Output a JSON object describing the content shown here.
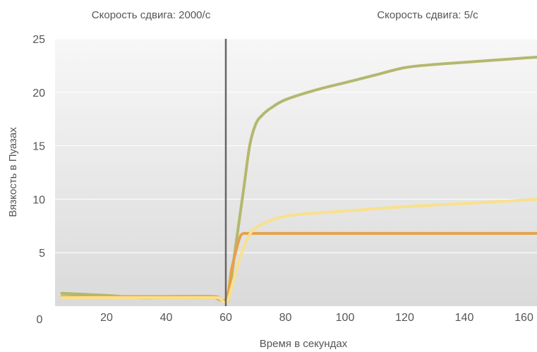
{
  "chart_data": {
    "type": "line",
    "title": "",
    "xlabel": "Время в секундах",
    "ylabel": "Вязкость в Пуазах",
    "xlim": [
      0,
      165
    ],
    "ylim": [
      0,
      25
    ],
    "x_ticks": [
      20,
      40,
      60,
      80,
      100,
      120,
      140,
      160
    ],
    "y_ticks": [
      5,
      10,
      15,
      20,
      25
    ],
    "origin_label": "0",
    "grid": true,
    "legend": "none",
    "annotations": [
      {
        "text": "Скорость сдвига: 2000/с",
        "region": "left"
      },
      {
        "text": "Скорость сдвига: 5/с",
        "region": "right"
      }
    ],
    "divider_x": 60,
    "colors": {
      "plot_bg_top": "#f7f7f7",
      "plot_bg_bottom": "#dadada",
      "divider": "#666666"
    },
    "series": [
      {
        "color": "#b3b86e",
        "x": [
          5,
          20,
          30,
          40,
          50,
          56,
          58,
          60,
          61,
          63,
          66,
          68,
          70,
          72,
          75,
          80,
          90,
          100,
          110,
          120,
          130,
          140,
          150,
          160,
          165
        ],
        "y": [
          1.2,
          1.0,
          0.8,
          0.8,
          0.8,
          0.8,
          0.6,
          0.5,
          0.9,
          5.0,
          11.0,
          15.0,
          17.0,
          17.8,
          18.5,
          19.3,
          20.2,
          20.9,
          21.6,
          22.3,
          22.6,
          22.8,
          23.0,
          23.2,
          23.3
        ]
      },
      {
        "color": "#e5a24a",
        "x": [
          5,
          20,
          40,
          56,
          58,
          60,
          61,
          62,
          64,
          65,
          66,
          67,
          70,
          100,
          140,
          165
        ],
        "y": [
          0.9,
          0.9,
          0.9,
          0.9,
          0.6,
          0.6,
          1.5,
          3.5,
          5.8,
          6.6,
          6.8,
          6.8,
          6.8,
          6.8,
          6.8,
          6.8
        ]
      },
      {
        "color": "#f9e08c",
        "x": [
          5,
          20,
          40,
          56,
          58,
          60,
          61,
          62,
          64,
          66,
          68,
          70,
          75,
          80,
          85,
          90,
          100,
          120,
          140,
          165
        ],
        "y": [
          0.8,
          0.8,
          0.8,
          0.8,
          0.7,
          0.3,
          0.8,
          1.8,
          3.8,
          5.5,
          6.7,
          7.3,
          8.0,
          8.4,
          8.6,
          8.7,
          8.9,
          9.3,
          9.6,
          10.0
        ]
      }
    ]
  }
}
